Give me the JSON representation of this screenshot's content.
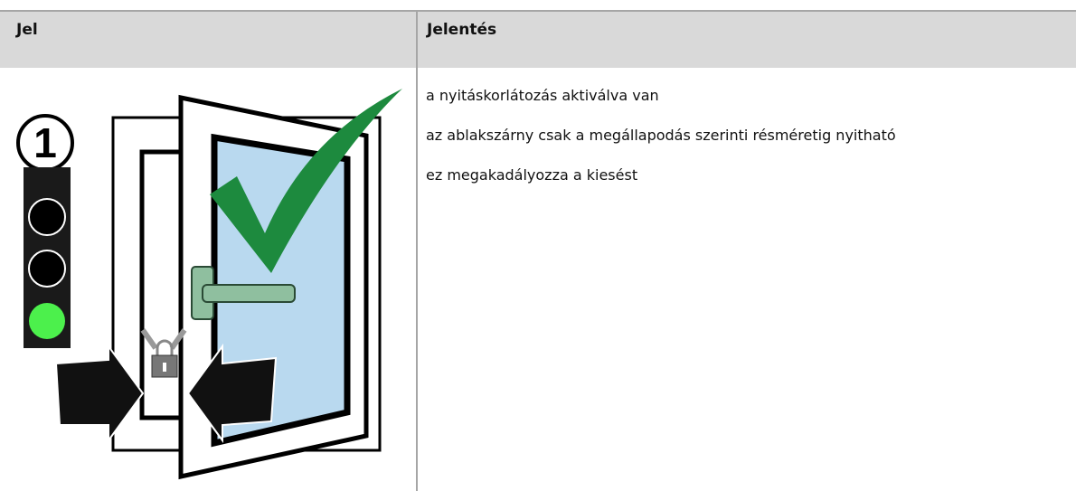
{
  "table": {
    "header": [
      "Jel",
      "Jelentés"
    ],
    "rows": [
      {
        "signal_number": "1",
        "meaning": [
          "a nyitáskorlátozás aktiválva van",
          "az ablakszárny csak a megállapodás szerinti résméretig nyitható",
          "ez megakadályozza a kiesést"
        ]
      }
    ]
  }
}
